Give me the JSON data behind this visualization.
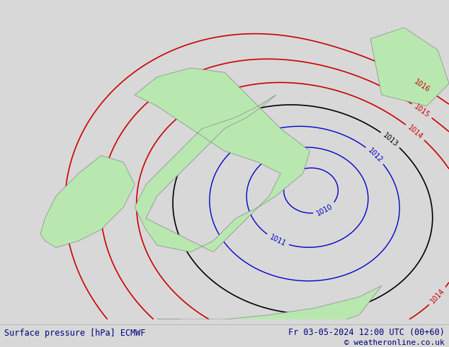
{
  "title_left": "Surface pressure [hPa] ECMWF",
  "title_right": "Fr 03-05-2024 12:00 UTC (00+60)",
  "copyright": "© weatheronline.co.uk",
  "bg_color": "#d8d8d8",
  "land_color": "#b8e8b0",
  "sea_color": "#d8d8d8",
  "blue_contour_color": "#0000cc",
  "red_contour_color": "#cc0000",
  "black_contour_color": "#000000",
  "bottom_bar_color": "#f0f0f0",
  "text_color_bottom": "#00008b",
  "figsize": [
    6.34,
    4.9
  ],
  "dpi": 100
}
